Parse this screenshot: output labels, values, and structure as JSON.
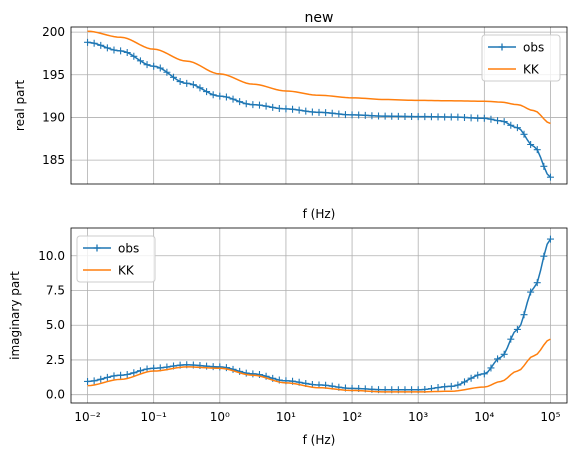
{
  "chart_data": [
    {
      "type": "line",
      "title": "new",
      "xlabel": "f (Hz)",
      "ylabel": "real part",
      "xscale": "log",
      "xlim": [
        0.0056,
        178
      ],
      "xlim_note": "",
      "x_range": [
        0.01,
        100000
      ],
      "ylim": [
        182.2,
        200.6
      ],
      "yticks": [
        185,
        190,
        195,
        200
      ],
      "ytick_labels": [
        "185",
        "190",
        "195",
        "200"
      ],
      "xtick_labels_shown": false,
      "grid": true,
      "legend_position": "upper right",
      "series": [
        {
          "name": "obs",
          "color": "#1f77b4",
          "marker": "+",
          "anchors": [
            [
              -2,
              198.8
            ],
            [
              -1.5,
              197.8
            ],
            [
              -1,
              196.0
            ],
            [
              -0.5,
              194.0
            ],
            [
              0,
              192.5
            ],
            [
              0.5,
              191.5
            ],
            [
              1,
              191.0
            ],
            [
              1.5,
              190.6
            ],
            [
              2,
              190.3
            ],
            [
              2.5,
              190.15
            ],
            [
              3,
              190.1
            ],
            [
              3.5,
              190.05
            ],
            [
              4,
              189.9
            ],
            [
              4.25,
              189.6
            ],
            [
              4.5,
              188.8
            ],
            [
              4.75,
              186.6
            ],
            [
              5,
              183.0
            ]
          ]
        },
        {
          "name": "KK",
          "color": "#ff7f0e",
          "marker": "",
          "anchors": [
            [
              -2,
              200.1
            ],
            [
              -1.5,
              199.4
            ],
            [
              -1,
              198.0
            ],
            [
              -0.5,
              196.6
            ],
            [
              0,
              195.1
            ],
            [
              0.5,
              193.9
            ],
            [
              1,
              193.1
            ],
            [
              1.5,
              192.6
            ],
            [
              2,
              192.3
            ],
            [
              2.5,
              192.1
            ],
            [
              3,
              192.0
            ],
            [
              3.5,
              191.95
            ],
            [
              4,
              191.9
            ],
            [
              4.25,
              191.8
            ],
            [
              4.5,
              191.5
            ],
            [
              4.75,
              190.8
            ],
            [
              5,
              189.3
            ]
          ]
        }
      ]
    },
    {
      "type": "line",
      "title": "",
      "xlabel": "f (Hz)",
      "ylabel": "imaginary part",
      "xscale": "log",
      "x_range": [
        0.01,
        100000
      ],
      "ylim": [
        -0.6,
        12.0
      ],
      "yticks": [
        0,
        2.5,
        5,
        7.5,
        10
      ],
      "ytick_labels": [
        "0.0",
        "2.5",
        "5.0",
        "7.5",
        "10.0"
      ],
      "xtick_labels": [
        "10⁻²",
        "10⁻¹",
        "10⁰",
        "10¹",
        "10²",
        "10³",
        "10⁴",
        "10⁵"
      ],
      "grid": true,
      "legend_position": "upper left",
      "series": [
        {
          "name": "obs",
          "color": "#1f77b4",
          "marker": "+",
          "anchors": [
            [
              -2,
              0.95
            ],
            [
              -1.5,
              1.4
            ],
            [
              -1,
              1.9
            ],
            [
              -0.5,
              2.15
            ],
            [
              0,
              2.0
            ],
            [
              0.5,
              1.5
            ],
            [
              1,
              1.0
            ],
            [
              1.5,
              0.7
            ],
            [
              2,
              0.45
            ],
            [
              2.5,
              0.35
            ],
            [
              3,
              0.35
            ],
            [
              3.5,
              0.6
            ],
            [
              4,
              1.5
            ],
            [
              4.25,
              2.7
            ],
            [
              4.5,
              4.7
            ],
            [
              4.75,
              7.7
            ],
            [
              5,
              11.2
            ]
          ]
        },
        {
          "name": "KK",
          "color": "#ff7f0e",
          "marker": "",
          "anchors": [
            [
              -2,
              0.65
            ],
            [
              -1.5,
              1.1
            ],
            [
              -1,
              1.7
            ],
            [
              -0.5,
              2.0
            ],
            [
              0,
              1.9
            ],
            [
              0.5,
              1.4
            ],
            [
              1,
              0.85
            ],
            [
              1.5,
              0.5
            ],
            [
              2,
              0.3
            ],
            [
              2.5,
              0.2
            ],
            [
              3,
              0.2
            ],
            [
              3.5,
              0.25
            ],
            [
              4,
              0.55
            ],
            [
              4.25,
              0.95
            ],
            [
              4.5,
              1.7
            ],
            [
              4.75,
              2.8
            ],
            [
              5,
              4.0
            ]
          ]
        }
      ]
    }
  ]
}
